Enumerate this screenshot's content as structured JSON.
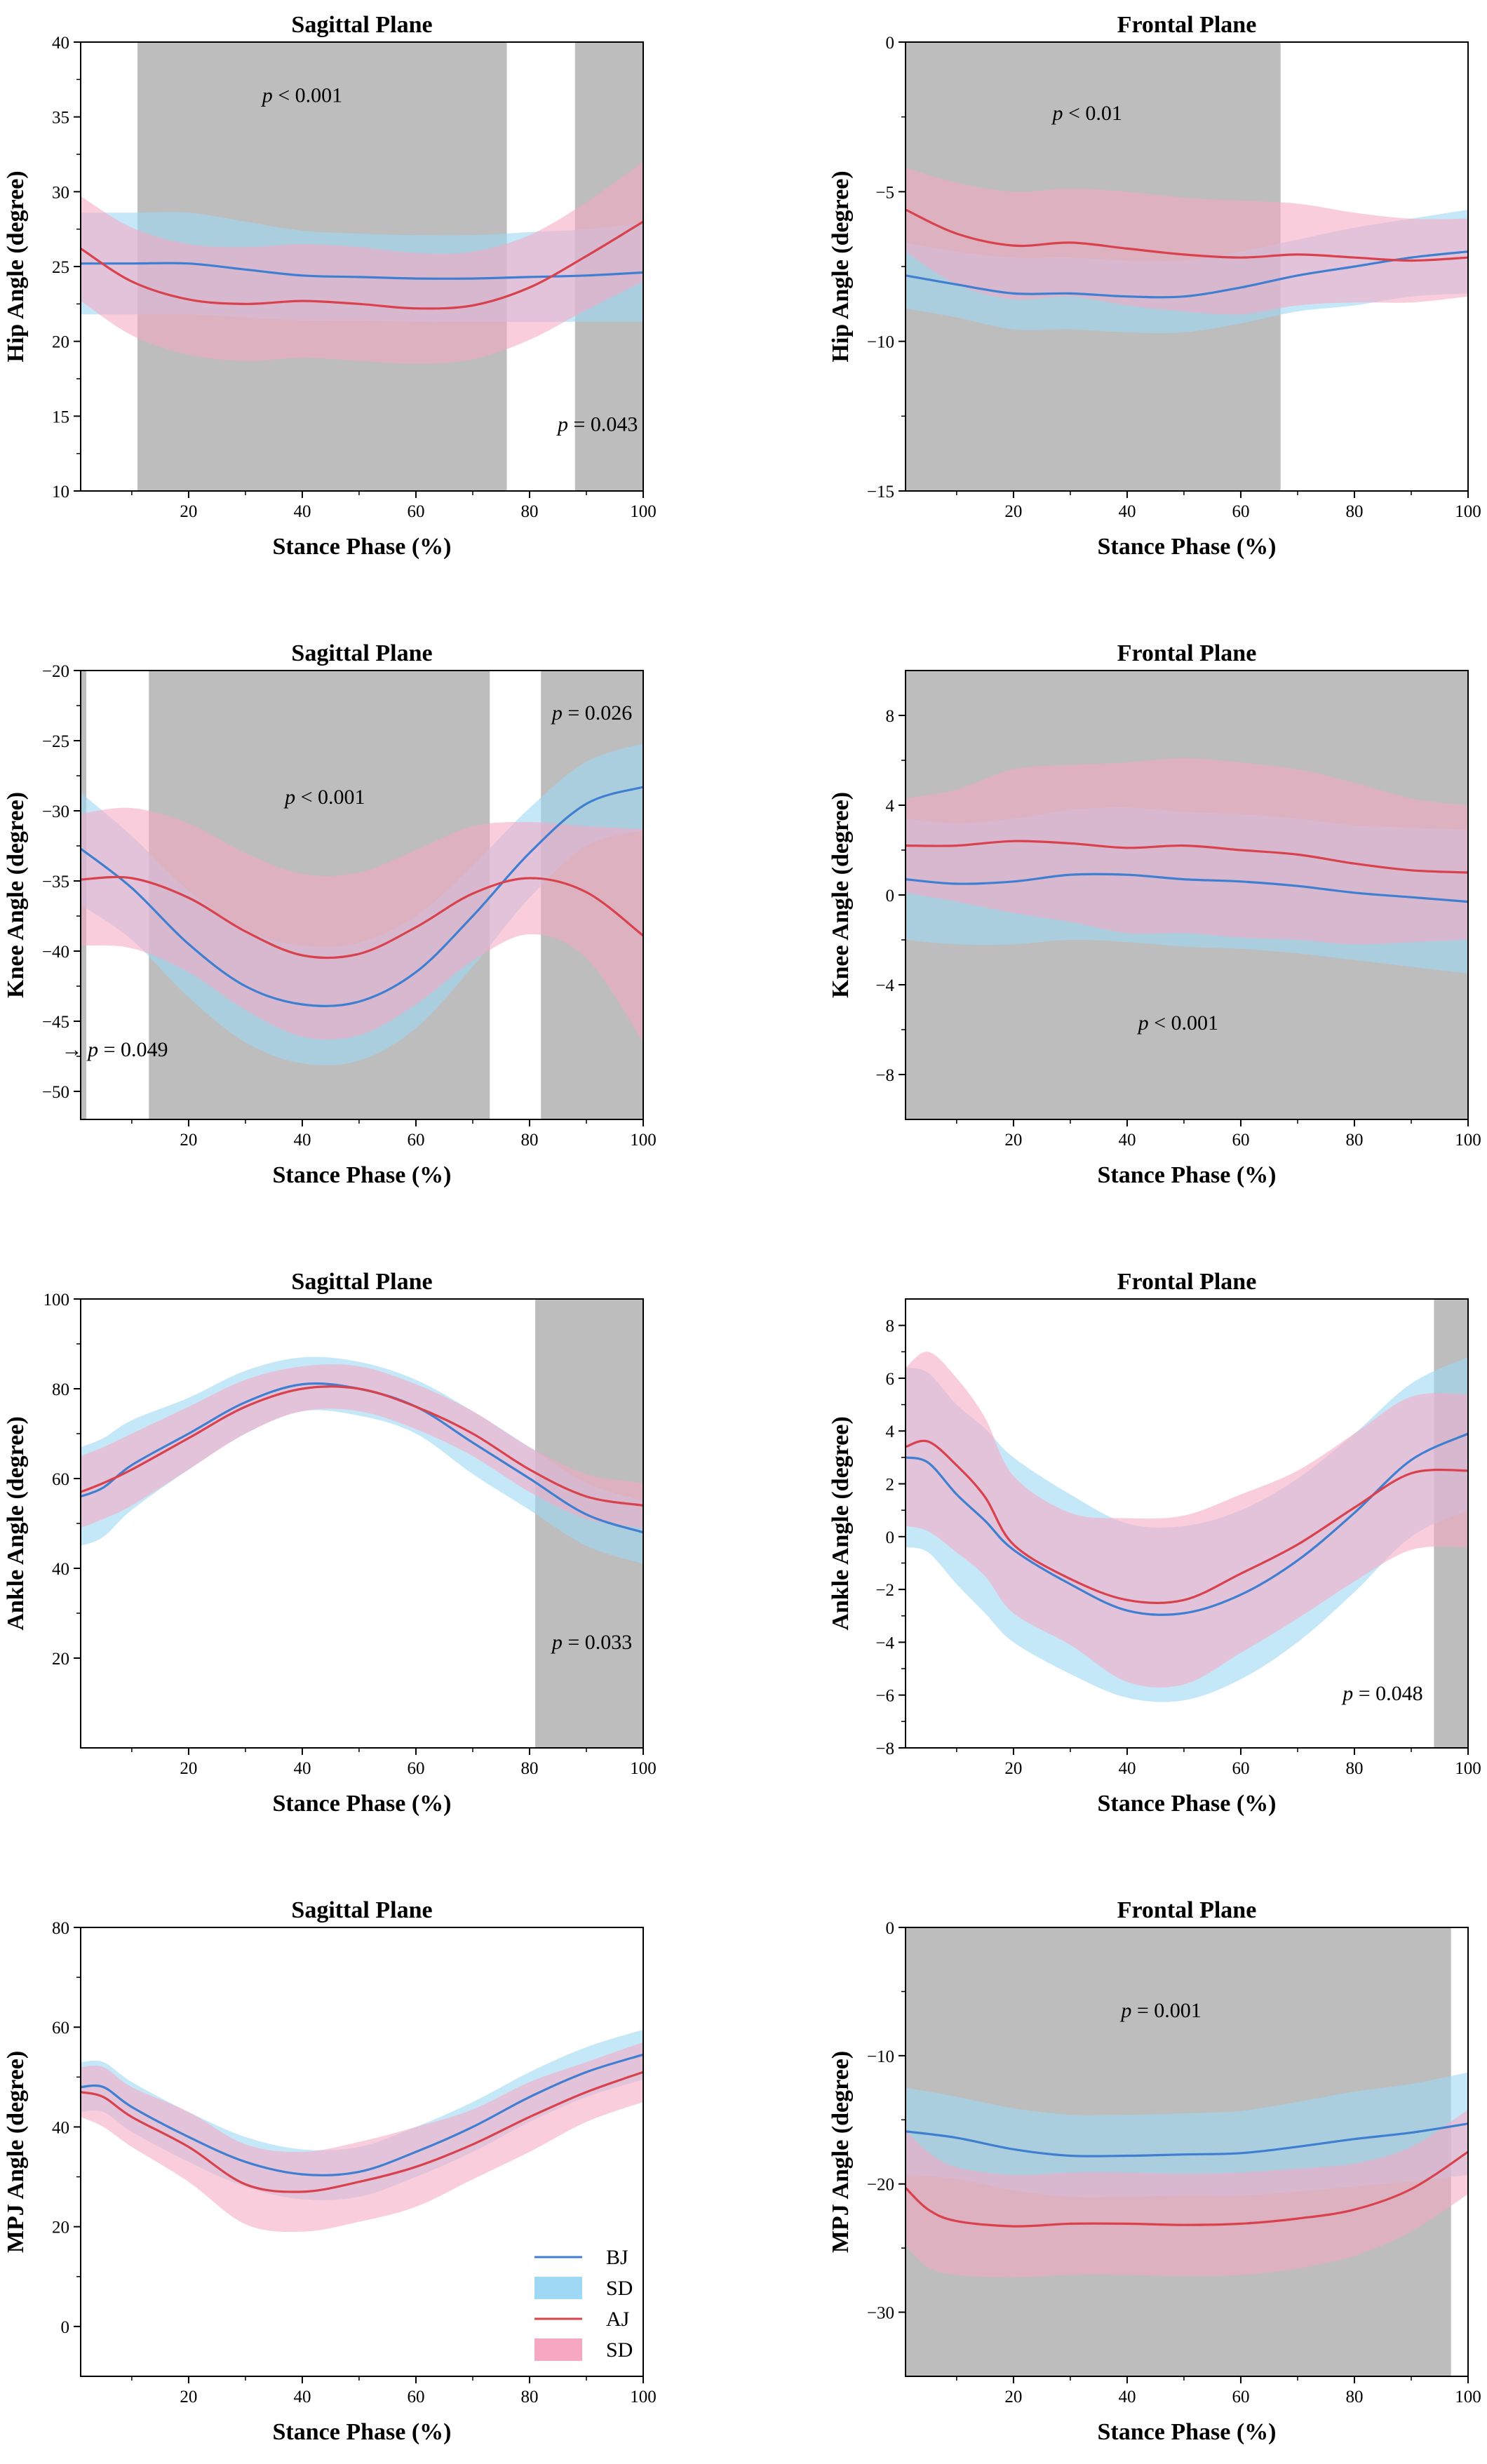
{
  "colors": {
    "bj_line": "#3f7fd1",
    "bj_band": "#9fd8f5",
    "aj_line": "#d9414d",
    "aj_band": "#f6a8c2",
    "shade": "#bdbdbd"
  },
  "legend": [
    {
      "label": "BJ",
      "kind": "line",
      "color": "#3f7fd1"
    },
    {
      "label": "SD",
      "kind": "band",
      "color": "#9fd8f5"
    },
    {
      "label": "AJ",
      "kind": "line",
      "color": "#d9414d"
    },
    {
      "label": "SD",
      "kind": "band",
      "color": "#f6a8c2"
    }
  ],
  "chart_data": [
    {
      "type": "line",
      "title": "Sagittal Plane",
      "xlabel": "Stance Phase (%)",
      "ylabel": "Hip Angle (degree)",
      "xlim": [
        1,
        100
      ],
      "ylim": [
        10,
        40
      ],
      "xticks": [
        20,
        40,
        60,
        80,
        100
      ],
      "yticks": [
        10,
        15,
        20,
        25,
        30,
        35,
        40
      ],
      "shaded": [
        [
          11,
          76
        ],
        [
          88,
          100
        ]
      ],
      "annotations": [
        {
          "pre": "",
          "italic": "p",
          "post": " < 0.001",
          "x": 40,
          "y": 36
        },
        {
          "pre": "",
          "italic": "p",
          "post": " = 0.043",
          "x": 92,
          "y": 14
        }
      ],
      "series": [
        {
          "name": "BJ",
          "x": [
            1,
            10,
            20,
            30,
            40,
            50,
            60,
            70,
            80,
            90,
            100
          ],
          "y": [
            25.2,
            25.2,
            25.2,
            24.8,
            24.4,
            24.3,
            24.2,
            24.2,
            24.3,
            24.4,
            24.6
          ],
          "sd": [
            3.4,
            3.4,
            3.4,
            3.2,
            3.0,
            2.9,
            2.9,
            2.9,
            3.0,
            3.1,
            3.3
          ]
        },
        {
          "name": "AJ",
          "x": [
            1,
            10,
            20,
            30,
            40,
            50,
            60,
            70,
            80,
            90,
            100
          ],
          "y": [
            26.2,
            24.0,
            22.8,
            22.5,
            22.7,
            22.5,
            22.2,
            22.4,
            23.6,
            25.7,
            28.0
          ],
          "sd": [
            3.5,
            3.6,
            3.7,
            3.8,
            3.8,
            3.8,
            3.7,
            3.6,
            3.5,
            3.6,
            4.0
          ]
        }
      ]
    },
    {
      "type": "line",
      "title": "Frontal Plane",
      "xlabel": "Stance Phase (%)",
      "ylabel": "Hip Angle (degree)",
      "xlim": [
        1,
        100
      ],
      "ylim": [
        -15,
        0
      ],
      "xticks": [
        20,
        40,
        60,
        80,
        100
      ],
      "yticks": [
        -15,
        -10,
        -5,
        0
      ],
      "shaded": [
        [
          1,
          67
        ]
      ],
      "annotations": [
        {
          "pre": "",
          "italic": "p",
          "post": " < 0.01",
          "x": 33,
          "y": -2.6
        }
      ],
      "series": [
        {
          "name": "BJ",
          "x": [
            1,
            10,
            20,
            30,
            40,
            50,
            60,
            70,
            80,
            90,
            100
          ],
          "y": [
            -7.8,
            -8.1,
            -8.4,
            -8.4,
            -8.5,
            -8.5,
            -8.2,
            -7.8,
            -7.5,
            -7.2,
            -7.0
          ],
          "sd": [
            1.1,
            1.1,
            1.2,
            1.2,
            1.2,
            1.2,
            1.2,
            1.2,
            1.3,
            1.3,
            1.4
          ]
        },
        {
          "name": "AJ",
          "x": [
            1,
            10,
            20,
            30,
            40,
            50,
            60,
            70,
            80,
            90,
            100
          ],
          "y": [
            -5.6,
            -6.4,
            -6.8,
            -6.7,
            -6.9,
            -7.1,
            -7.2,
            -7.1,
            -7.2,
            -7.3,
            -7.2
          ],
          "sd": [
            1.4,
            1.7,
            1.8,
            1.8,
            1.9,
            1.9,
            1.9,
            1.7,
            1.5,
            1.4,
            1.3
          ]
        }
      ]
    },
    {
      "type": "line",
      "title": "Sagittal Plane",
      "xlabel": "Stance Phase (%)",
      "ylabel": "Knee Angle (degree)",
      "xlim": [
        1,
        100
      ],
      "ylim": [
        -52,
        -20
      ],
      "xticks": [
        20,
        40,
        60,
        80,
        100
      ],
      "yticks": [
        -50,
        -45,
        -40,
        -35,
        -30,
        -25,
        -20
      ],
      "shaded": [
        [
          1,
          2
        ],
        [
          13,
          73
        ],
        [
          82,
          100
        ]
      ],
      "annotations": [
        {
          "pre": "",
          "italic": "p",
          "post": " < 0.001",
          "x": 44,
          "y": -29.5
        },
        {
          "pre": "",
          "italic": "p",
          "post": " = 0.026",
          "x": 91,
          "y": -23.5
        },
        {
          "pre": "→ ",
          "italic": "p",
          "post": " = 0.049",
          "x": 7,
          "y": -47.5
        }
      ],
      "series": [
        {
          "name": "BJ",
          "x": [
            1,
            10,
            20,
            30,
            40,
            50,
            60,
            70,
            80,
            90,
            100
          ],
          "y": [
            -32.7,
            -35.5,
            -39.5,
            -42.5,
            -43.8,
            -43.6,
            -41.5,
            -37.5,
            -33.0,
            -29.5,
            -28.3
          ],
          "sd": [
            4.0,
            3.7,
            3.8,
            4.0,
            4.2,
            4.2,
            4.0,
            3.6,
            3.2,
            3.0,
            3.1
          ]
        },
        {
          "name": "AJ",
          "x": [
            1,
            10,
            20,
            30,
            40,
            50,
            60,
            70,
            80,
            90,
            100
          ],
          "y": [
            -34.9,
            -34.8,
            -36.2,
            -38.6,
            -40.3,
            -40.2,
            -38.3,
            -35.9,
            -34.8,
            -35.8,
            -38.9
          ],
          "sd": [
            4.7,
            5.0,
            5.3,
            5.6,
            5.8,
            5.8,
            5.5,
            4.8,
            4.0,
            4.7,
            7.6
          ]
        }
      ]
    },
    {
      "type": "line",
      "title": "Frontal Plane",
      "xlabel": "Stance Phase (%)",
      "ylabel": "Knee Angle (degree)",
      "xlim": [
        1,
        100
      ],
      "ylim": [
        -10,
        10
      ],
      "xticks": [
        20,
        40,
        60,
        80,
        100
      ],
      "yticks": [
        -8,
        -4,
        0,
        4,
        8
      ],
      "shaded": [
        [
          1,
          100
        ]
      ],
      "annotations": [
        {
          "pre": "",
          "italic": "p",
          "post": " < 0.001",
          "x": 49,
          "y": -6
        }
      ],
      "series": [
        {
          "name": "BJ",
          "x": [
            1,
            10,
            20,
            30,
            40,
            50,
            60,
            70,
            80,
            90,
            100
          ],
          "y": [
            0.7,
            0.5,
            0.6,
            0.9,
            0.9,
            0.7,
            0.6,
            0.4,
            0.1,
            -0.1,
            -0.3
          ],
          "sd": [
            2.7,
            2.7,
            2.8,
            2.9,
            3.0,
            3.0,
            3.0,
            3.0,
            3.0,
            3.1,
            3.2
          ]
        },
        {
          "name": "AJ",
          "x": [
            1,
            10,
            20,
            30,
            40,
            50,
            60,
            70,
            80,
            90,
            100
          ],
          "y": [
            2.2,
            2.2,
            2.4,
            2.3,
            2.1,
            2.2,
            2.0,
            1.8,
            1.4,
            1.1,
            1.0
          ],
          "sd": [
            2.1,
            2.5,
            3.2,
            3.5,
            3.8,
            3.9,
            3.9,
            3.8,
            3.6,
            3.2,
            3.0
          ]
        }
      ]
    },
    {
      "type": "line",
      "title": "Sagittal Plane",
      "xlabel": "Stance Phase (%)",
      "ylabel": "Ankle Angle (degree)",
      "xlim": [
        1,
        100
      ],
      "ylim": [
        0,
        100
      ],
      "xticks": [
        20,
        40,
        60,
        80,
        100
      ],
      "yticks": [
        20,
        40,
        60,
        80,
        100
      ],
      "shaded": [
        [
          81,
          100
        ]
      ],
      "annotations": [
        {
          "pre": "",
          "italic": "p",
          "post": " = 0.033",
          "x": 91,
          "y": 22
        }
      ],
      "series": [
        {
          "name": "BJ",
          "x": [
            1,
            5,
            10,
            20,
            30,
            40,
            50,
            60,
            70,
            80,
            90,
            100
          ],
          "y": [
            56,
            58,
            63,
            70,
            77,
            81,
            80,
            76,
            68,
            60,
            52,
            48
          ],
          "sd": [
            11,
            11,
            10,
            8,
            7,
            6,
            6,
            6,
            7,
            7,
            7,
            7
          ]
        },
        {
          "name": "AJ",
          "x": [
            1,
            5,
            10,
            20,
            30,
            40,
            50,
            60,
            70,
            80,
            90,
            100
          ],
          "y": [
            57,
            59,
            62,
            69,
            76,
            80,
            80,
            76,
            70,
            62,
            56,
            54
          ],
          "sd": [
            8,
            8,
            8,
            7,
            6,
            5,
            5,
            5,
            5,
            5,
            5,
            5
          ]
        }
      ]
    },
    {
      "type": "line",
      "title": "Frontal Plane",
      "xlabel": "Stance Phase (%)",
      "ylabel": "Ankle Angle (degree)",
      "xlim": [
        1,
        100
      ],
      "ylim": [
        -8,
        9
      ],
      "xticks": [
        20,
        40,
        60,
        80,
        100
      ],
      "yticks": [
        -8,
        -6,
        -4,
        -2,
        0,
        2,
        4,
        6,
        8
      ],
      "shaded": [
        [
          94,
          100
        ]
      ],
      "annotations": [
        {
          "pre": "",
          "italic": "p",
          "post": " = 0.048",
          "x": 85,
          "y": -6.2
        }
      ],
      "series": [
        {
          "name": "BJ",
          "x": [
            1,
            5,
            10,
            15,
            20,
            30,
            40,
            50,
            60,
            70,
            80,
            90,
            100
          ],
          "y": [
            3.0,
            2.8,
            1.6,
            0.6,
            -0.5,
            -1.8,
            -2.8,
            -2.9,
            -2.2,
            -0.9,
            0.9,
            2.9,
            3.9
          ],
          "sd": [
            3.4,
            3.4,
            3.4,
            3.5,
            3.5,
            3.4,
            3.3,
            3.3,
            3.2,
            3.1,
            3.0,
            2.9,
            2.9
          ]
        },
        {
          "name": "AJ",
          "x": [
            1,
            5,
            10,
            15,
            20,
            30,
            40,
            50,
            60,
            70,
            80,
            90,
            100
          ],
          "y": [
            3.4,
            3.6,
            2.7,
            1.5,
            -0.3,
            -1.6,
            -2.4,
            -2.4,
            -1.4,
            -0.3,
            1.1,
            2.4,
            2.5
          ],
          "sd": [
            3.0,
            3.4,
            3.3,
            3.0,
            2.6,
            2.5,
            3.1,
            3.2,
            3.0,
            2.8,
            2.8,
            2.9,
            2.9
          ]
        }
      ]
    },
    {
      "type": "line",
      "title": "Sagittal Plane",
      "xlabel": "Stance Phase (%)",
      "ylabel": "MPJ Angle (degree)",
      "xlim": [
        1,
        100
      ],
      "ylim": [
        -10,
        80
      ],
      "xticks": [
        20,
        40,
        60,
        80,
        100
      ],
      "yticks": [
        0,
        20,
        40,
        60,
        80
      ],
      "shaded": [],
      "annotations": [],
      "series": [
        {
          "name": "BJ",
          "x": [
            1,
            5,
            10,
            20,
            30,
            40,
            50,
            60,
            70,
            80,
            90,
            100
          ],
          "y": [
            48,
            48,
            44,
            38,
            33,
            30.5,
            31,
            35,
            40,
            46,
            51,
            54.5
          ],
          "sd": [
            5,
            5,
            5,
            5,
            5,
            5,
            5,
            5,
            5,
            5,
            5,
            5
          ]
        },
        {
          "name": "AJ",
          "x": [
            1,
            5,
            10,
            20,
            30,
            40,
            50,
            60,
            70,
            80,
            90,
            100
          ],
          "y": [
            47,
            46,
            42,
            36,
            28.5,
            27,
            29,
            32,
            36.5,
            42,
            47,
            51
          ],
          "sd": [
            5,
            6,
            6,
            7,
            8,
            8,
            8,
            8,
            7,
            7,
            6,
            6
          ]
        }
      ]
    },
    {
      "type": "line",
      "title": "Frontal Plane",
      "xlabel": "Stance Phase (%)",
      "ylabel": "MPJ Angle (degree)",
      "xlim": [
        1,
        100
      ],
      "ylim": [
        -35,
        0
      ],
      "xticks": [
        20,
        40,
        60,
        80,
        100
      ],
      "yticks": [
        -30,
        -20,
        -10,
        0
      ],
      "shaded": [
        [
          1,
          97
        ]
      ],
      "annotations": [
        {
          "pre": "",
          "italic": "p",
          "post": " = 0.001",
          "x": 46,
          "y": -7
        }
      ],
      "series": [
        {
          "name": "BJ",
          "x": [
            1,
            10,
            20,
            30,
            40,
            50,
            60,
            70,
            80,
            90,
            100
          ],
          "y": [
            -15.9,
            -16.4,
            -17.3,
            -17.8,
            -17.8,
            -17.7,
            -17.6,
            -17.1,
            -16.5,
            -16.0,
            -15.3
          ],
          "sd": [
            3.4,
            3.2,
            3.2,
            3.2,
            3.2,
            3.2,
            3.3,
            3.5,
            3.7,
            3.8,
            4.0
          ]
        },
        {
          "name": "AJ",
          "x": [
            1,
            5,
            10,
            20,
            30,
            40,
            50,
            60,
            70,
            80,
            90,
            100
          ],
          "y": [
            -20.3,
            -22.0,
            -22.9,
            -23.3,
            -23.1,
            -23.1,
            -23.2,
            -23.1,
            -22.7,
            -22.0,
            -20.4,
            -17.5
          ],
          "sd": [
            4.5,
            4.5,
            4.2,
            4.0,
            4.0,
            4.0,
            4.0,
            4.0,
            3.9,
            3.6,
            3.3,
            3.3
          ]
        }
      ]
    }
  ]
}
